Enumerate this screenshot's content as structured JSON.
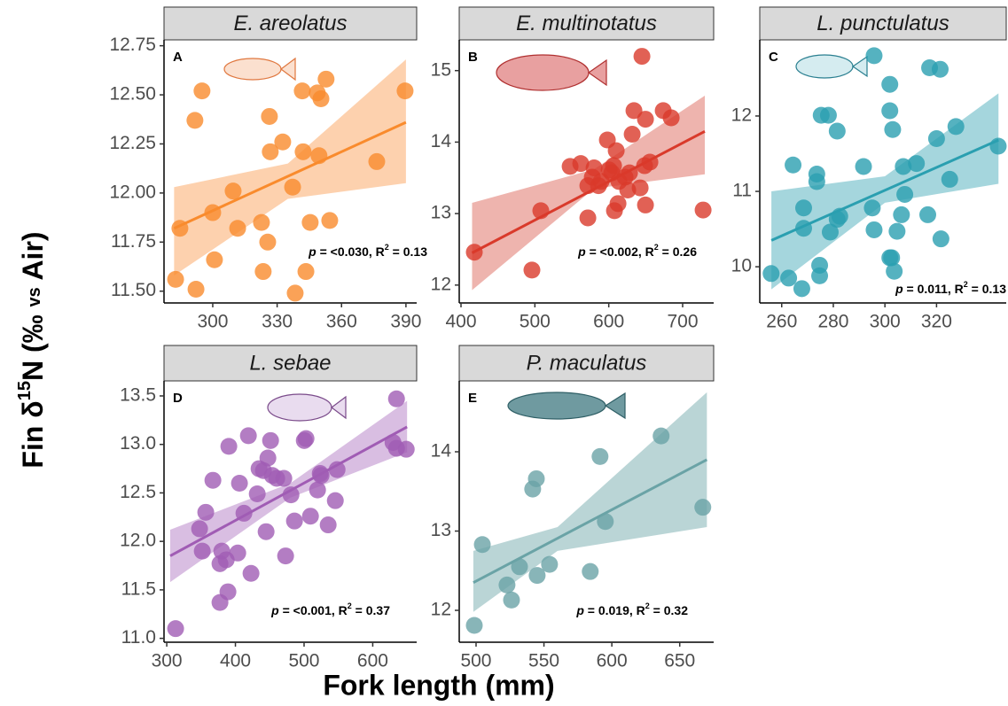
{
  "x_label": "Fork length (mm)",
  "y_label": [
    "Fin δ",
    "15",
    "N (‰ ",
    "vs",
    " Air)"
  ],
  "chart_data": [
    {
      "type": "scatter",
      "title": "E. areolatus",
      "panel_label": "A",
      "annotation": [
        "p",
        " = <0.030, R",
        "2",
        " = 0.13"
      ],
      "color": "#f98b2d",
      "band_color": "#fcc69a",
      "xlim": [
        277.3,
        395
      ],
      "xticks": [
        300,
        330,
        360,
        390
      ],
      "ylim": [
        11.44,
        12.78
      ],
      "yticks": [
        {
          "value": 11.5,
          "label": "11.50"
        },
        11.75,
        {
          "value": 12,
          "label": "12.00"
        },
        12.25,
        {
          "value": 12.5,
          "label": "12.50"
        },
        12.75
      ],
      "x": [
        282.7,
        284.7,
        295.0,
        291.7,
        292.2,
        300.8,
        300,
        309.5,
        311.6,
        326.4,
        326.8,
        325.6,
        322.7,
        323.5,
        332.6,
        337.2,
        338.4,
        341.7,
        342.1,
        343.4,
        345.4,
        348.7,
        350.4,
        352.8,
        349.5,
        354.5,
        376.4,
        389.6
      ],
      "values": [
        11.56,
        11.82,
        12.52,
        12.37,
        11.51,
        11.66,
        11.9,
        12.01,
        11.82,
        12.39,
        12.21,
        11.75,
        11.85,
        11.6,
        12.26,
        12.03,
        11.49,
        12.52,
        12.21,
        11.6,
        11.85,
        12.51,
        12.48,
        12.58,
        12.19,
        11.86,
        12.16,
        12.52
      ],
      "fit": {
        "x": [
          282,
          390
        ],
        "y": [
          11.82,
          12.36
        ]
      },
      "band": {
        "x": [
          282,
          335,
          390
        ],
        "lower": [
          11.58,
          11.97,
          12.05
        ],
        "upper": [
          12.03,
          12.15,
          12.68
        ]
      }
    },
    {
      "type": "scatter",
      "title": "E. multinotatus",
      "panel_label": "B",
      "annotation": [
        "p",
        " = <0.002, R",
        "2",
        " = 0.26"
      ],
      "color": "#d93a2b",
      "band_color": "#eaa19a",
      "xlim": [
        397.6,
        742
      ],
      "xticks": [
        400,
        500,
        600,
        700
      ],
      "ylim": [
        11.75,
        15.43
      ],
      "yticks": [
        12,
        13,
        14,
        15
      ],
      "x": [
        418.0,
        496.0,
        508.0,
        547.7,
        562.1,
        571.7,
        577.7,
        571.7,
        586.1,
        589.7,
        580.1,
        598.1,
        606.5,
        604.1,
        610.1,
        600.5,
        612.5,
        613.7,
        607.7,
        622.1,
        631.7,
        628.1,
        625.7,
        634.1,
        644.9,
        649.7,
        655.7,
        648.5,
        642.5,
        649.7,
        673.7,
        684.5,
        727.7
      ],
      "values": [
        12.46,
        12.21,
        13.04,
        13.66,
        13.7,
        13.39,
        13.51,
        12.94,
        13.39,
        13.45,
        13.64,
        14.03,
        13.67,
        13.57,
        13.88,
        13.61,
        13.14,
        13.45,
        13.04,
        13.51,
        14.11,
        13.57,
        13.33,
        14.44,
        15.2,
        14.32,
        13.72,
        13.67,
        13.36,
        13.12,
        14.44,
        14.34,
        13.05
      ],
      "fit": {
        "x": [
          415,
          730
        ],
        "y": [
          12.45,
          14.15
        ]
      },
      "band": {
        "x": [
          415,
          580,
          730
        ],
        "lower": [
          11.93,
          13.35,
          13.55
        ],
        "upper": [
          13.15,
          13.62,
          14.65
        ]
      }
    },
    {
      "type": "scatter",
      "title": "L. punctulatus",
      "panel_label": "C",
      "annotation": [
        "p",
        " = 0.011, R",
        "2",
        " = 0.13"
      ],
      "color": "#2a9fb0",
      "band_color": "#8fccd5",
      "xlim": [
        251.5,
        347
      ],
      "xticks": [
        260,
        280,
        300,
        320
      ],
      "ylim": [
        9.52,
        13.01
      ],
      "yticks": [
        10,
        11,
        12
      ],
      "x": [
        255.9,
        262.7,
        264.4,
        267.8,
        268.5,
        268.5,
        273.6,
        273.6,
        274.7,
        274.7,
        275.3,
        278.1,
        278.8,
        281.5,
        281.5,
        282.5,
        291.7,
        295.1,
        295.8,
        295.8,
        301.9,
        301.9,
        303.0,
        301.9,
        302.6,
        303.6,
        304.7,
        306.4,
        307.1,
        307.7,
        312.2,
        316.6,
        317.3,
        320.0,
        321.4,
        321.7,
        325.1,
        327.5,
        343.9
      ],
      "values": [
        9.91,
        9.85,
        11.35,
        9.71,
        10.51,
        10.78,
        11.13,
        11.23,
        10.02,
        9.88,
        12.01,
        12.01,
        10.46,
        11.8,
        10.63,
        10.67,
        11.33,
        10.78,
        10.49,
        12.8,
        12.42,
        12.07,
        11.82,
        10.12,
        10.12,
        9.94,
        10.47,
        10.69,
        11.33,
        10.96,
        11.37,
        10.69,
        12.64,
        11.7,
        12.62,
        10.37,
        11.16,
        11.86,
        11.6
      ],
      "fit": {
        "x": [
          256,
          344
        ],
        "y": [
          10.35,
          11.68
        ]
      },
      "band": {
        "x": [
          256,
          300,
          344
        ],
        "lower": [
          9.7,
          10.85,
          11.1
        ],
        "upper": [
          11.0,
          11.2,
          12.3
        ]
      }
    },
    {
      "type": "scatter",
      "title": "L. sebae",
      "panel_label": "D",
      "annotation": [
        "p",
        " = <0.001, R",
        "2",
        " = 0.37"
      ],
      "color": "#a05cb4",
      "band_color": "#d0aedb",
      "xlim": [
        296,
        664
      ],
      "xticks": [
        300,
        400,
        500,
        600
      ],
      "ylim": [
        10.96,
        13.655
      ],
      "yticks": [
        {
          "value": 11,
          "label": "11.0"
        },
        11.5,
        {
          "value": 12,
          "label": "12.0"
        },
        12.5,
        {
          "value": 13,
          "label": "13.0"
        },
        13.5
      ],
      "x": [
        312.9,
        347.8,
        351.7,
        356.8,
        367.2,
        377.5,
        377.5,
        380.1,
        386.6,
        389.1,
        390.4,
        403.4,
        405.9,
        412.4,
        418.9,
        422.7,
        431.8,
        434.4,
        440.8,
        444.7,
        447.3,
        451.2,
        453.7,
        460.2,
        473.1,
        470.5,
        480.9,
        486.0,
        500.3,
        502.8,
        509.3,
        519.6,
        523.5,
        524.8,
        535.1,
        545.5,
        548.1,
        629.5,
        634.6,
        648.8,
        634.6
      ],
      "values": [
        11.1,
        12.13,
        11.9,
        12.3,
        12.63,
        11.37,
        11.77,
        11.9,
        11.81,
        11.48,
        12.98,
        11.88,
        12.6,
        12.29,
        13.09,
        11.67,
        12.49,
        12.75,
        12.73,
        12.1,
        12.86,
        13.04,
        12.68,
        12.65,
        11.85,
        12.65,
        12.48,
        12.21,
        13.04,
        13.06,
        12.26,
        12.53,
        12.7,
        12.68,
        12.17,
        12.42,
        12.74,
        13.02,
        12.96,
        12.95,
        13.47
      ],
      "fit": {
        "x": [
          305,
          650
        ],
        "y": [
          11.85,
          13.18
        ]
      },
      "band": {
        "x": [
          305,
          480,
          650
        ],
        "lower": [
          11.58,
          12.45,
          12.92
        ],
        "upper": [
          12.12,
          12.6,
          13.45
        ]
      }
    },
    {
      "type": "scatter",
      "title": "P. maculatus",
      "panel_label": "E",
      "annotation": [
        "p",
        " = 0.019, R",
        "2",
        " = 0.32"
      ],
      "color": "#6aa3a6",
      "band_color": "#a9cacc",
      "xlim": [
        487.6,
        675
      ],
      "xticks": [
        500,
        550,
        600,
        650
      ],
      "ylim": [
        11.598,
        14.894
      ],
      "yticks": [
        12,
        13,
        14
      ],
      "x": [
        498.7,
        504.6,
        522.8,
        532.0,
        526.1,
        545.0,
        554.1,
        541.7,
        544.4,
        584.1,
        591.3,
        595.2,
        636.3,
        667.0
      ],
      "values": [
        11.81,
        12.83,
        12.32,
        12.55,
        12.13,
        12.44,
        12.58,
        13.53,
        13.66,
        12.49,
        13.94,
        13.12,
        14.2,
        13.3
      ],
      "fit": {
        "x": [
          498,
          670
        ],
        "y": [
          12.35,
          13.9
        ]
      },
      "band": {
        "x": [
          498,
          560,
          670
        ],
        "lower": [
          11.98,
          12.75,
          13.05
        ],
        "upper": [
          12.75,
          13.05,
          14.75
        ]
      }
    }
  ]
}
